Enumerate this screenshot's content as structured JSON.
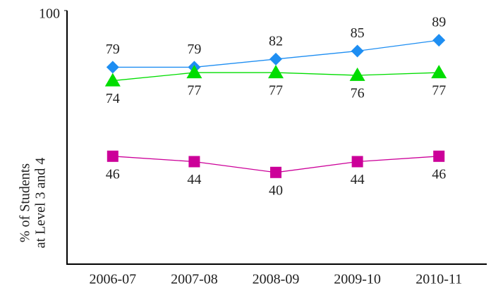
{
  "chart_data": {
    "type": "line",
    "y_label": [
      "% of Students",
      "at Level 3 and 4"
    ],
    "categories": [
      "2006-07",
      "2007-08",
      "2008-09",
      "2009-10",
      "2010-11"
    ],
    "series": [
      {
        "color": "#1e8ef2",
        "marker": "diamond",
        "label_position": "above",
        "values": [
          79,
          79,
          82,
          85,
          89
        ]
      },
      {
        "color": "#00dd00",
        "marker": "triangle",
        "label_position": "below",
        "values": [
          74,
          77,
          77,
          76,
          77
        ]
      },
      {
        "color": "#cc0099",
        "marker": "square",
        "label_position": "below",
        "values": [
          46,
          44,
          40,
          44,
          46
        ]
      }
    ],
    "ylim": [
      6,
      100
    ],
    "yticks": [
      100
    ],
    "grid": false
  }
}
